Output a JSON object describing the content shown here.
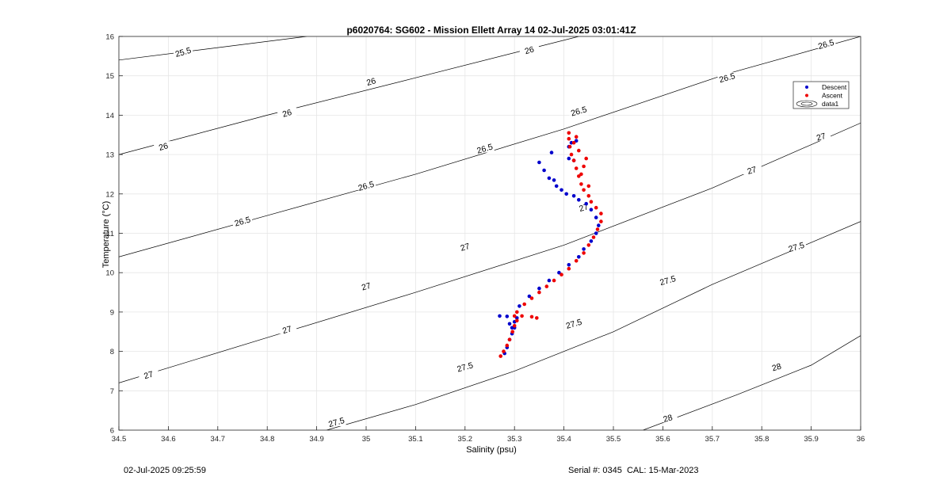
{
  "chart_data": {
    "type": "scatter",
    "title": "p6020764: SG602 - Mission Ellett Array 14 02-Jul-2025 03:01:41Z",
    "xlabel": "Salinity (psu)",
    "ylabel": "Temperature (°C)",
    "xlim": [
      34.5,
      36
    ],
    "ylim": [
      6,
      16
    ],
    "xticks": [
      "34.5",
      "34.6",
      "34.7",
      "34.8",
      "34.9",
      "35",
      "35.1",
      "35.2",
      "35.3",
      "35.4",
      "35.5",
      "35.6",
      "35.7",
      "35.8",
      "35.9",
      "36"
    ],
    "yticks": [
      "6",
      "7",
      "8",
      "9",
      "10",
      "11",
      "12",
      "13",
      "14",
      "15",
      "16"
    ],
    "grid": true,
    "legend_position": "top-right",
    "legend": [
      {
        "name": "Descent",
        "color": "#0000cc",
        "marker": "dot"
      },
      {
        "name": "Ascent",
        "color": "#ee0000",
        "marker": "dot"
      },
      {
        "name": "data1",
        "color": "#000000",
        "marker": "contour"
      }
    ],
    "series": [
      {
        "name": "Descent",
        "color": "#0000cc",
        "points": [
          [
            35.27,
            8.9
          ],
          [
            35.285,
            8.89
          ],
          [
            35.29,
            8.7
          ],
          [
            35.295,
            8.6
          ],
          [
            35.3,
            8.75
          ],
          [
            35.305,
            8.85
          ],
          [
            35.28,
            7.95
          ],
          [
            35.285,
            8.1
          ],
          [
            35.29,
            8.3
          ],
          [
            35.295,
            8.45
          ],
          [
            35.3,
            8.6
          ],
          [
            35.31,
            9.15
          ],
          [
            35.33,
            9.4
          ],
          [
            35.35,
            9.6
          ],
          [
            35.37,
            9.8
          ],
          [
            35.39,
            10.0
          ],
          [
            35.41,
            10.2
          ],
          [
            35.43,
            10.4
          ],
          [
            35.44,
            10.6
          ],
          [
            35.455,
            10.8
          ],
          [
            35.465,
            11.0
          ],
          [
            35.47,
            11.2
          ],
          [
            35.465,
            11.4
          ],
          [
            35.455,
            11.6
          ],
          [
            35.445,
            11.75
          ],
          [
            35.43,
            11.85
          ],
          [
            35.42,
            11.95
          ],
          [
            35.405,
            12.0
          ],
          [
            35.395,
            12.1
          ],
          [
            35.385,
            12.2
          ],
          [
            35.38,
            12.35
          ],
          [
            35.37,
            12.4
          ],
          [
            35.36,
            12.6
          ],
          [
            35.35,
            12.8
          ],
          [
            35.375,
            13.05
          ],
          [
            35.41,
            13.2
          ],
          [
            35.415,
            13.3
          ],
          [
            35.425,
            13.35
          ],
          [
            35.41,
            12.9
          ],
          [
            35.42,
            12.85
          ]
        ]
      },
      {
        "name": "Ascent",
        "color": "#ee0000",
        "points": [
          [
            35.272,
            7.88
          ],
          [
            35.278,
            8.0
          ],
          [
            35.285,
            8.15
          ],
          [
            35.29,
            8.3
          ],
          [
            35.296,
            8.5
          ],
          [
            35.3,
            8.65
          ],
          [
            35.305,
            8.78
          ],
          [
            35.3,
            8.9
          ],
          [
            35.315,
            8.9
          ],
          [
            35.335,
            8.88
          ],
          [
            35.345,
            8.85
          ],
          [
            35.305,
            9.0
          ],
          [
            35.32,
            9.2
          ],
          [
            35.335,
            9.35
          ],
          [
            35.35,
            9.5
          ],
          [
            35.365,
            9.65
          ],
          [
            35.38,
            9.8
          ],
          [
            35.395,
            9.95
          ],
          [
            35.41,
            10.1
          ],
          [
            35.425,
            10.3
          ],
          [
            35.44,
            10.5
          ],
          [
            35.45,
            10.7
          ],
          [
            35.46,
            10.9
          ],
          [
            35.468,
            11.1
          ],
          [
            35.475,
            11.3
          ],
          [
            35.475,
            11.5
          ],
          [
            35.465,
            11.65
          ],
          [
            35.455,
            11.8
          ],
          [
            35.45,
            11.95
          ],
          [
            35.44,
            12.1
          ],
          [
            35.435,
            12.25
          ],
          [
            35.43,
            12.45
          ],
          [
            35.425,
            12.65
          ],
          [
            35.42,
            12.85
          ],
          [
            35.415,
            13.0
          ],
          [
            35.412,
            13.2
          ],
          [
            35.41,
            13.4
          ],
          [
            35.41,
            13.55
          ],
          [
            35.425,
            13.45
          ],
          [
            35.42,
            13.3
          ],
          [
            35.43,
            13.1
          ],
          [
            35.445,
            12.9
          ],
          [
            35.44,
            12.7
          ],
          [
            35.435,
            12.5
          ],
          [
            35.45,
            12.2
          ]
        ]
      }
    ],
    "contours": [
      {
        "level": "25.5",
        "points": [
          [
            34.5,
            15.4
          ],
          [
            34.88,
            16.0
          ]
        ],
        "labels": [
          [
            34.63,
            15.6
          ]
        ]
      },
      {
        "level": "26",
        "points": [
          [
            34.5,
            13.0
          ],
          [
            34.8,
            14.0
          ],
          [
            35.1,
            14.95
          ],
          [
            35.43,
            16.0
          ]
        ],
        "labels": [
          [
            34.59,
            13.2
          ],
          [
            34.84,
            14.05
          ],
          [
            35.01,
            14.85
          ],
          [
            35.48,
            16.6
          ]
        ]
      },
      {
        "level": "26",
        "labels_inline": [
          [
            35.33,
            15.65
          ]
        ],
        "points": []
      },
      {
        "level": "26.5",
        "points": [
          [
            34.5,
            10.4
          ],
          [
            34.8,
            11.45
          ],
          [
            35.1,
            12.5
          ],
          [
            35.4,
            13.65
          ],
          [
            35.73,
            15.05
          ],
          [
            36.0,
            16.0
          ]
        ],
        "labels": [
          [
            34.75,
            11.3
          ],
          [
            35.0,
            12.2
          ],
          [
            35.24,
            13.15
          ],
          [
            35.43,
            14.1
          ],
          [
            35.73,
            14.95
          ],
          [
            35.93,
            15.8
          ]
        ]
      },
      {
        "level": "27",
        "points": [
          [
            34.5,
            7.2
          ],
          [
            34.8,
            8.35
          ],
          [
            35.1,
            9.5
          ],
          [
            35.4,
            10.7
          ],
          [
            35.7,
            12.15
          ],
          [
            36.0,
            13.8
          ]
        ],
        "labels": [
          [
            34.56,
            7.4
          ],
          [
            34.84,
            8.55
          ],
          [
            35.0,
            9.65
          ],
          [
            35.2,
            10.65
          ],
          [
            35.44,
            11.65
          ],
          [
            35.78,
            12.6
          ],
          [
            35.92,
            13.45
          ]
        ]
      },
      {
        "level": "27.5",
        "points": [
          [
            34.92,
            6.0
          ],
          [
            35.1,
            6.65
          ],
          [
            35.3,
            7.5
          ],
          [
            35.5,
            8.5
          ],
          [
            35.7,
            9.7
          ],
          [
            36.0,
            11.3
          ]
        ],
        "labels": [
          [
            34.94,
            6.2
          ],
          [
            35.2,
            7.6
          ],
          [
            35.42,
            8.7
          ],
          [
            35.61,
            9.8
          ],
          [
            35.87,
            10.65
          ]
        ]
      },
      {
        "level": "28",
        "points": [
          [
            35.56,
            6.0
          ],
          [
            35.75,
            6.9
          ],
          [
            35.9,
            7.65
          ],
          [
            36.0,
            8.4
          ]
        ],
        "labels": [
          [
            35.61,
            6.3
          ],
          [
            35.83,
            7.6
          ]
        ]
      }
    ]
  },
  "footer": {
    "timestamp": "02-Jul-2025 09:25:59",
    "serial": "Serial #: 0345  CAL: 15-Mar-2023"
  }
}
